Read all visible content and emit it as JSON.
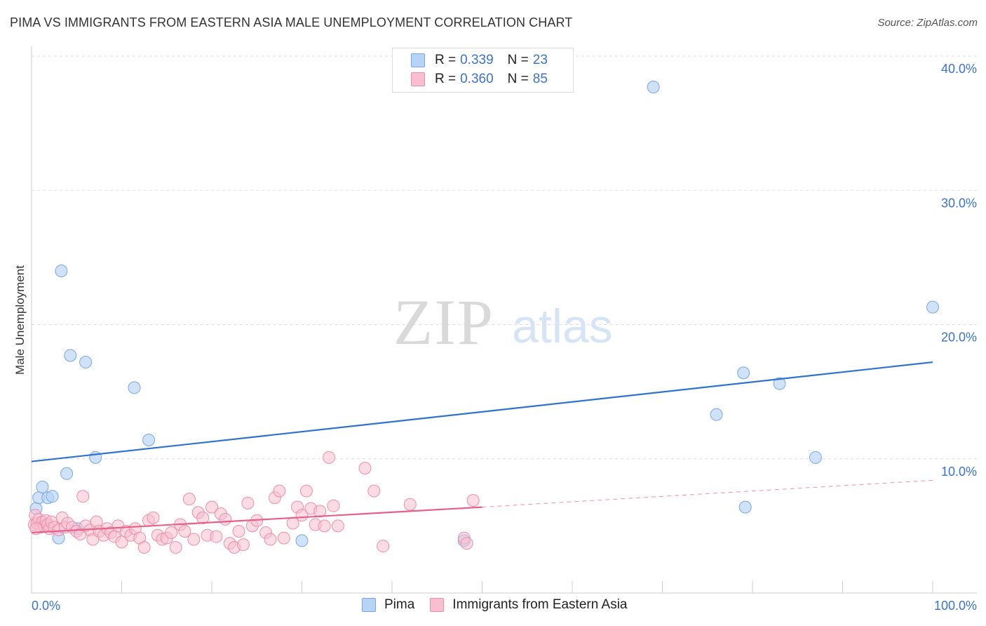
{
  "title": "PIMA VS IMMIGRANTS FROM EASTERN ASIA MALE UNEMPLOYMENT CORRELATION CHART",
  "source": "Source: ZipAtlas.com",
  "watermark": {
    "zip": "ZIP",
    "atlas": "atlas"
  },
  "legend_top": {
    "rows": [
      {
        "r_label": "R =",
        "r_value": "0.339",
        "n_label": "N =",
        "n_value": "23"
      },
      {
        "r_label": "R =",
        "r_value": "0.360",
        "n_label": "N =",
        "n_value": "85"
      }
    ]
  },
  "legend_bottom": [
    "Pima",
    "Immigrants from Eastern Asia"
  ],
  "colors": {
    "pima_fill": "#b7d3f5",
    "pima_stroke": "#7aa7df",
    "pima_line": "#2f73d0",
    "imm_fill": "#f8bfd0",
    "imm_stroke": "#ec8eaa",
    "imm_line": "#e8608a",
    "axis_label": "#3b73c9",
    "grid": "#dddddd"
  },
  "chart_data": {
    "type": "scatter",
    "ylabel": "Male Unemployment",
    "xlim": [
      0,
      100
    ],
    "ylim": [
      0,
      40
    ],
    "x_tick_labels": [
      "0.0%",
      "100.0%"
    ],
    "y_ticks": [
      10,
      20,
      30,
      40
    ],
    "y_tick_labels": [
      "10.0%",
      "20.0%",
      "30.0%",
      "40.0%"
    ],
    "grid": true,
    "series": [
      {
        "name": "Pima",
        "points": [
          [
            0.5,
            6.3
          ],
          [
            0.8,
            7.1
          ],
          [
            1.2,
            7.9
          ],
          [
            1.8,
            7.1
          ],
          [
            2.3,
            7.2
          ],
          [
            3.0,
            4.1
          ],
          [
            3.3,
            24.0
          ],
          [
            3.9,
            8.9
          ],
          [
            4.3,
            17.7
          ],
          [
            5.1,
            4.8
          ],
          [
            6.0,
            17.2
          ],
          [
            7.1,
            10.1
          ],
          [
            11.4,
            15.3
          ],
          [
            13.0,
            11.4
          ],
          [
            30.0,
            3.9
          ],
          [
            48.0,
            3.9
          ],
          [
            69.0,
            37.7
          ],
          [
            76.0,
            13.3
          ],
          [
            79.0,
            16.4
          ],
          [
            79.2,
            6.4
          ],
          [
            83.0,
            15.6
          ],
          [
            87.0,
            10.1
          ],
          [
            100.0,
            21.3
          ]
        ],
        "trend": {
          "x": [
            0,
            100
          ],
          "y": [
            9.8,
            17.2
          ]
        }
      },
      {
        "name": "Immigrants from Eastern Asia",
        "points": [
          [
            0.3,
            5.1
          ],
          [
            0.4,
            5.8
          ],
          [
            0.6,
            5.2
          ],
          [
            0.8,
            5.5
          ],
          [
            1.0,
            4.9
          ],
          [
            1.2,
            5.3
          ],
          [
            1.4,
            5.0
          ],
          [
            1.6,
            5.4
          ],
          [
            1.8,
            5.1
          ],
          [
            2.0,
            4.8
          ],
          [
            2.2,
            5.3
          ],
          [
            2.5,
            4.9
          ],
          [
            3.0,
            4.7
          ],
          [
            3.4,
            5.6
          ],
          [
            3.7,
            4.9
          ],
          [
            4.0,
            5.2
          ],
          [
            4.5,
            4.9
          ],
          [
            5.0,
            4.6
          ],
          [
            5.4,
            4.4
          ],
          [
            5.7,
            7.2
          ],
          [
            6.0,
            5.0
          ],
          [
            6.5,
            4.7
          ],
          [
            6.8,
            4.0
          ],
          [
            7.2,
            5.3
          ],
          [
            7.5,
            4.6
          ],
          [
            8.0,
            4.3
          ],
          [
            8.4,
            4.8
          ],
          [
            8.8,
            4.5
          ],
          [
            9.2,
            4.2
          ],
          [
            9.6,
            5.0
          ],
          [
            10.0,
            3.8
          ],
          [
            10.5,
            4.6
          ],
          [
            11.0,
            4.3
          ],
          [
            11.5,
            4.8
          ],
          [
            12.0,
            4.1
          ],
          [
            12.5,
            3.4
          ],
          [
            13.0,
            5.4
          ],
          [
            13.5,
            5.6
          ],
          [
            14.0,
            4.3
          ],
          [
            14.5,
            4.0
          ],
          [
            15.0,
            4.1
          ],
          [
            15.5,
            4.5
          ],
          [
            16.0,
            3.4
          ],
          [
            16.5,
            5.1
          ],
          [
            17.0,
            4.6
          ],
          [
            17.5,
            7.0
          ],
          [
            18.0,
            4.0
          ],
          [
            18.5,
            6.0
          ],
          [
            19.0,
            5.6
          ],
          [
            19.5,
            4.3
          ],
          [
            20.0,
            6.4
          ],
          [
            20.5,
            4.2
          ],
          [
            21.0,
            5.9
          ],
          [
            21.5,
            5.5
          ],
          [
            22.0,
            3.7
          ],
          [
            22.5,
            3.4
          ],
          [
            23.0,
            4.6
          ],
          [
            23.5,
            3.6
          ],
          [
            24.0,
            6.7
          ],
          [
            24.5,
            5.0
          ],
          [
            25.0,
            5.4
          ],
          [
            26.0,
            4.5
          ],
          [
            26.5,
            4.0
          ],
          [
            27.0,
            7.1
          ],
          [
            27.5,
            7.6
          ],
          [
            28.0,
            4.1
          ],
          [
            29.0,
            5.2
          ],
          [
            29.5,
            6.4
          ],
          [
            30.0,
            5.8
          ],
          [
            30.5,
            7.6
          ],
          [
            31.0,
            6.3
          ],
          [
            31.5,
            5.1
          ],
          [
            32.0,
            6.1
          ],
          [
            32.5,
            5.0
          ],
          [
            33.0,
            10.1
          ],
          [
            33.5,
            6.5
          ],
          [
            34.0,
            5.0
          ],
          [
            37.0,
            9.3
          ],
          [
            38.0,
            7.6
          ],
          [
            39.0,
            3.5
          ],
          [
            42.0,
            6.6
          ],
          [
            48.0,
            4.1
          ],
          [
            48.3,
            3.7
          ],
          [
            49.0,
            6.9
          ],
          [
            0.5,
            4.8
          ]
        ],
        "trend": {
          "x": [
            0,
            50
          ],
          "y": [
            4.5,
            6.4
          ]
        },
        "trend_dashed": {
          "x": [
            50,
            100
          ],
          "y": [
            6.4,
            8.4
          ]
        }
      }
    ]
  }
}
